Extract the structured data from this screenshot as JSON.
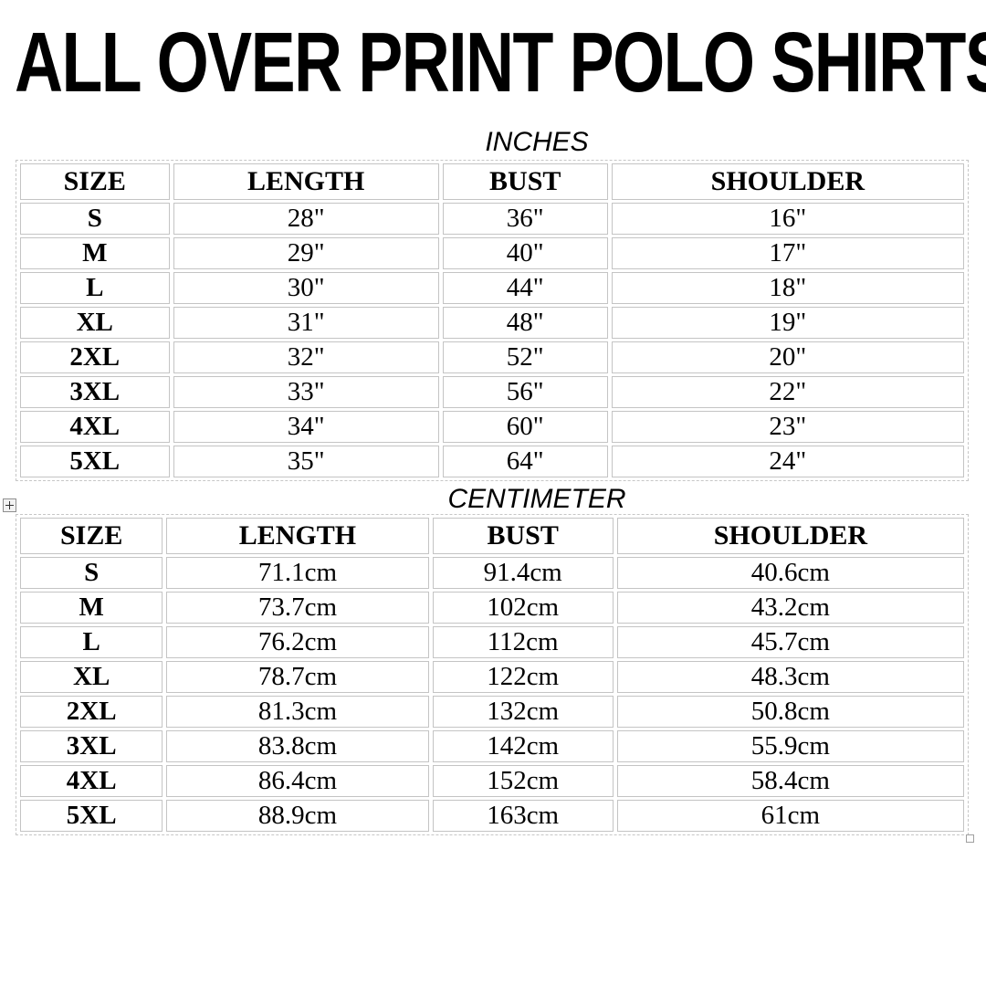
{
  "title": "ALL OVER PRINT POLO SHIRTS",
  "colors": {
    "background": "#ffffff",
    "text": "#000000",
    "cell_border": "#c4c4c4",
    "outer_dashed_border": "#c6c6c6"
  },
  "icons": {
    "table_move_handle": "plus-in-square-icon",
    "table_resize_handle": "small-square-icon"
  },
  "tables": [
    {
      "unit_label": "INCHES",
      "headers": [
        "SIZE",
        "LENGTH",
        "BUST",
        "SHOULDER"
      ],
      "rows": [
        [
          "S",
          "28\"",
          "36\"",
          "16\""
        ],
        [
          "M",
          "29\"",
          "40\"",
          "17\""
        ],
        [
          "L",
          "30\"",
          "44\"",
          "18\""
        ],
        [
          "XL",
          "31\"",
          "48\"",
          "19\""
        ],
        [
          "2XL",
          "32\"",
          "52\"",
          "20\""
        ],
        [
          "3XL",
          "33\"",
          "56\"",
          "22\""
        ],
        [
          "4XL",
          "34\"",
          "60\"",
          "23\""
        ],
        [
          "5XL",
          "35\"",
          "64\"",
          "24\""
        ]
      ]
    },
    {
      "unit_label": "CENTIMETER",
      "headers": [
        "SIZE",
        "LENGTH",
        "BUST",
        "SHOULDER"
      ],
      "rows": [
        [
          "S",
          "71.1cm",
          "91.4cm",
          "40.6cm"
        ],
        [
          "M",
          "73.7cm",
          "102cm",
          "43.2cm"
        ],
        [
          "L",
          "76.2cm",
          "112cm",
          "45.7cm"
        ],
        [
          "XL",
          "78.7cm",
          "122cm",
          "48.3cm"
        ],
        [
          "2XL",
          "81.3cm",
          "132cm",
          "50.8cm"
        ],
        [
          "3XL",
          "83.8cm",
          "142cm",
          "55.9cm"
        ],
        [
          "4XL",
          "86.4cm",
          "152cm",
          "58.4cm"
        ],
        [
          "5XL",
          "88.9cm",
          "163cm",
          "61cm"
        ]
      ]
    }
  ]
}
